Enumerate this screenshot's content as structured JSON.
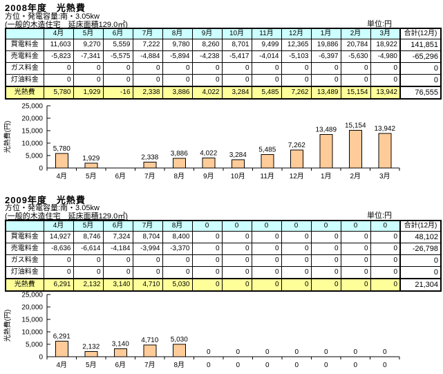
{
  "page": {
    "background": "#FFFFFF"
  },
  "colors": {
    "header_fill": "#CCFFFF",
    "sum_row_fill": "#FFFF99",
    "bar_fill": "#FFCC99",
    "border": "#000000"
  },
  "sections": [
    {
      "title": "2008年度　光熱費",
      "subtitle1": "方位・発電容量:南・3.05kw",
      "subtitle2": "(一般的木造住宅　延床面積129.0㎡)",
      "unit_label": "単位:円",
      "table": {
        "corner": "",
        "month_headers": [
          "4月",
          "5月",
          "6月",
          "7月",
          "8月",
          "9月",
          "10月",
          "11月",
          "12月",
          "1月",
          "2月",
          "3月"
        ],
        "total_header": "合計(12月)",
        "rows": [
          {
            "label": "買電料金",
            "values": [
              "11,603",
              "9,270",
              "5,559",
              "7,222",
              "9,780",
              "8,260",
              "8,701",
              "9,499",
              "12,365",
              "19,886",
              "20,784",
              "18,922"
            ],
            "total": "141,851"
          },
          {
            "label": "売電料金",
            "values": [
              "-5,823",
              "-7,341",
              "-5,575",
              "-4,884",
              "-5,894",
              "-4,238",
              "-5,417",
              "-4,014",
              "-5,103",
              "-6,397",
              "-5,630",
              "-4,980"
            ],
            "total": "-65,296"
          },
          {
            "label": "ガス料金",
            "values": [
              "0",
              "0",
              "0",
              "0",
              "0",
              "0",
              "0",
              "0",
              "0",
              "0",
              "0",
              "0"
            ],
            "total": "0"
          },
          {
            "label": "灯油料金",
            "values": [
              "0",
              "0",
              "0",
              "0",
              "0",
              "0",
              "0",
              "0",
              "0",
              "0",
              "0",
              "0"
            ],
            "total": "0"
          }
        ],
        "sum_row": {
          "label": "光熱費",
          "values": [
            "5,780",
            "1,929",
            "-16",
            "2,338",
            "3,886",
            "4,022",
            "3,284",
            "5,485",
            "7,262",
            "13,489",
            "15,154",
            "13,942"
          ],
          "total": "76,555"
        }
      }
    },
    {
      "title": "2009年度　光熱費",
      "subtitle1": "方位・発電容量:南・3.05kw",
      "subtitle2": "(一般的木造住宅　延床面積129.0㎡)",
      "unit_label": "単位:円",
      "table": {
        "corner": "",
        "month_headers": [
          "4月",
          "5月",
          "6月",
          "7月",
          "8月",
          "0",
          "0",
          "0",
          "0",
          "0",
          "0",
          "0"
        ],
        "total_header": "合計(12月)",
        "rows": [
          {
            "label": "買電料金",
            "values": [
              "14,927",
              "8,746",
              "7,324",
              "8,704",
              "8,400",
              "0",
              "0",
              "0",
              "0",
              "0",
              "0",
              "0"
            ],
            "total": "48,102"
          },
          {
            "label": "売電料金",
            "values": [
              "-8,636",
              "-6,614",
              "-4,184",
              "-3,994",
              "-3,370",
              "0",
              "0",
              "0",
              "0",
              "0",
              "0",
              "0"
            ],
            "total": "-26,798"
          },
          {
            "label": "ガス料金",
            "values": [
              "0",
              "0",
              "0",
              "0",
              "0",
              "0",
              "0",
              "0",
              "0",
              "0",
              "0",
              "0"
            ],
            "total": "0"
          },
          {
            "label": "灯油料金",
            "values": [
              "0",
              "0",
              "0",
              "0",
              "0",
              "0",
              "0",
              "0",
              "0",
              "0",
              "0",
              "0"
            ],
            "total": "0"
          }
        ],
        "sum_row": {
          "label": "光熱費",
          "values": [
            "6,291",
            "2,132",
            "3,140",
            "4,710",
            "5,030",
            "0",
            "0",
            "0",
            "0",
            "0",
            "0",
            "0"
          ],
          "total": "21,304"
        }
      }
    }
  ],
  "chart_data": [
    {
      "type": "bar",
      "title": "",
      "categories": [
        "4月",
        "5月",
        "6月",
        "7月",
        "8月",
        "9月",
        "10月",
        "11月",
        "12月",
        "1月",
        "2月",
        "3月"
      ],
      "values": [
        5780,
        1929,
        -16,
        2338,
        3886,
        4022,
        3284,
        5485,
        7262,
        13489,
        15154,
        13942
      ],
      "bar_labels": [
        "5,780",
        "1,929",
        "",
        "2,338",
        "3,886",
        "4,022",
        "3,284",
        "5,485",
        "7,262",
        "13,489",
        "15,154",
        "13,942"
      ],
      "xlabel": "",
      "ylabel": "光熱費(円)",
      "ylim": [
        0,
        25000
      ],
      "yticks": [
        0,
        5000,
        10000,
        15000,
        20000,
        25000
      ],
      "ytick_labels": [
        "0",
        "5,000",
        "10,000",
        "15,000",
        "20,000",
        "25,000"
      ],
      "bar_color": "#FFCC99",
      "grid": false,
      "legend": "none"
    },
    {
      "type": "bar",
      "title": "",
      "categories": [
        "4月",
        "5月",
        "6月",
        "7月",
        "8月",
        "0",
        "0",
        "0",
        "0",
        "0",
        "0",
        "0"
      ],
      "values": [
        6291,
        2132,
        3140,
        4710,
        5030,
        0,
        0,
        0,
        0,
        0,
        0,
        0
      ],
      "bar_labels": [
        "6,291",
        "2,132",
        "3,140",
        "4,710",
        "5,030",
        "0",
        "0",
        "0",
        "0",
        "0",
        "0",
        "0"
      ],
      "xlabel": "",
      "ylabel": "光熱費(円)",
      "ylim": [
        0,
        25000
      ],
      "yticks": [
        0,
        5000,
        10000,
        15000,
        20000,
        25000
      ],
      "ytick_labels": [
        "0",
        "5,000",
        "10,000",
        "15,000",
        "20,000",
        "25,000"
      ],
      "bar_color": "#FFCC99",
      "grid": false,
      "legend": "none"
    }
  ]
}
